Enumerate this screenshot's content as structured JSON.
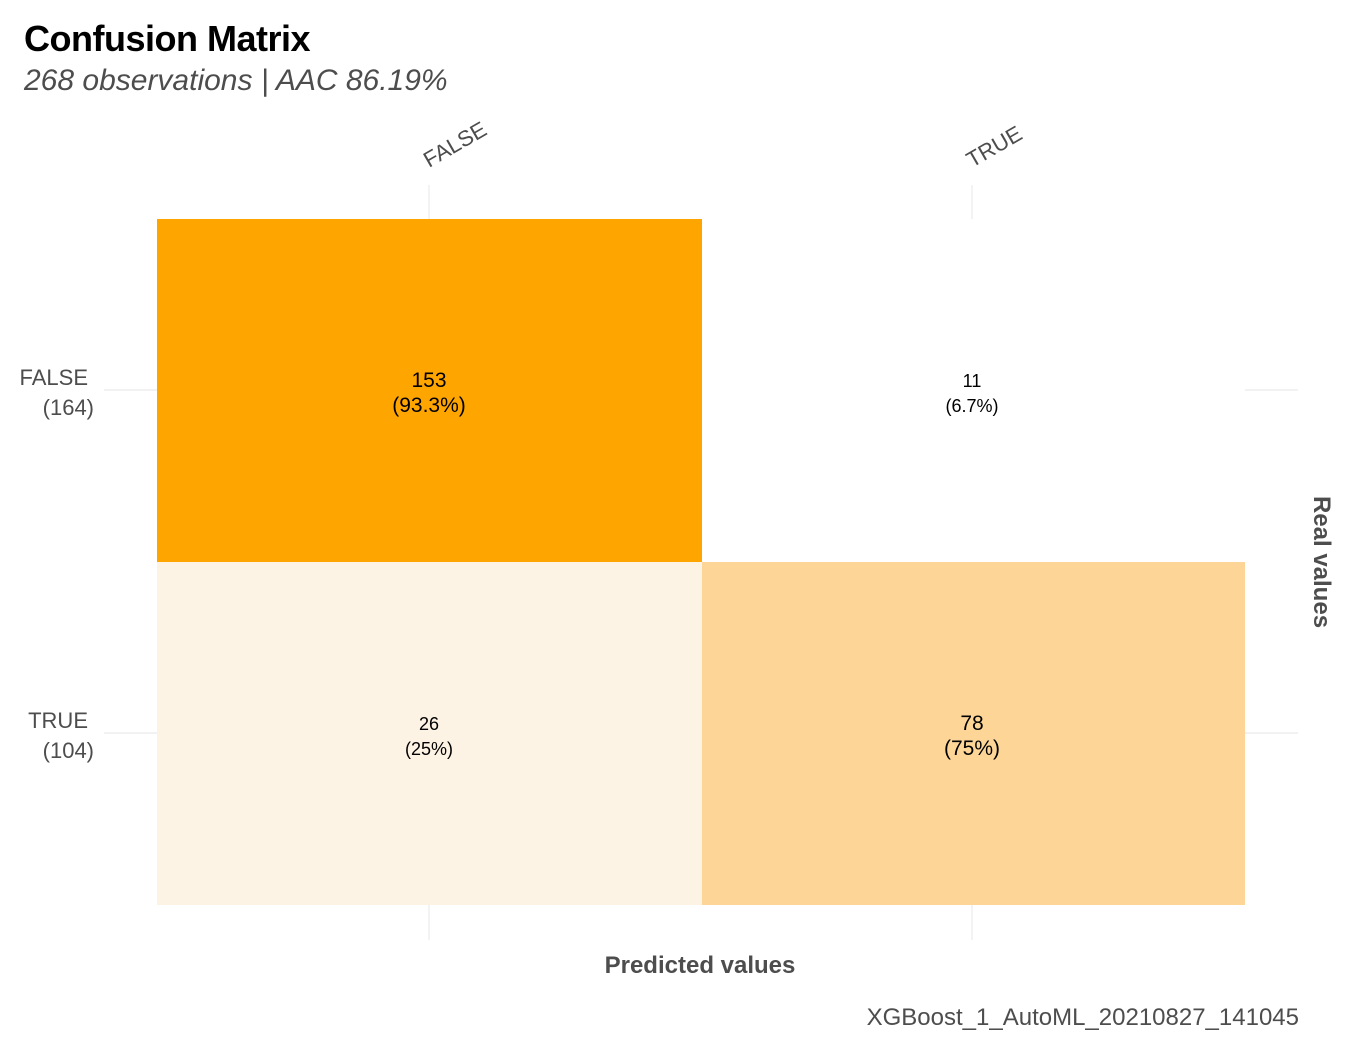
{
  "header": {
    "title": "Confusion Matrix",
    "subtitle": "268 observations | AAC 86.19%",
    "caption": "XGBoost_1_AutoML_20210827_141045"
  },
  "chart_data": {
    "type": "heatmap",
    "xlabel": "Predicted values",
    "ylabel": "Real values",
    "x_categories": [
      "FALSE",
      "TRUE"
    ],
    "y_categories": [
      "FALSE",
      "TRUE"
    ],
    "y_tick_labels": [
      [
        "FALSE",
        "(164)"
      ],
      [
        "TRUE",
        "(104)"
      ]
    ],
    "cells": [
      {
        "real": "FALSE",
        "predicted": "FALSE",
        "count": 153,
        "percent_label": "(93.3%)",
        "color": "#ffa500"
      },
      {
        "real": "FALSE",
        "predicted": "TRUE",
        "count": 11,
        "percent_label": "(6.7%)",
        "color": "#ffffff"
      },
      {
        "real": "TRUE",
        "predicted": "FALSE",
        "count": 26,
        "percent_label": "(25%)",
        "color": "#fdf3e4"
      },
      {
        "real": "TRUE",
        "predicted": "TRUE",
        "count": 78,
        "percent_label": "(75%)",
        "color": "#fdd597"
      }
    ],
    "legend": "none",
    "grid": true
  }
}
